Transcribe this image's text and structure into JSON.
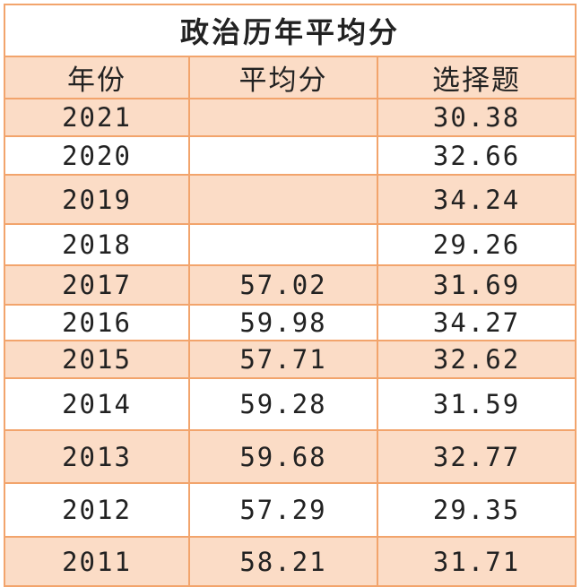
{
  "table": {
    "title": "政治历年平均分",
    "header": [
      "年份",
      "平均分",
      "选择题"
    ],
    "rows": [
      [
        "2021",
        null,
        "30.38"
      ],
      [
        "2020",
        null,
        "32.66"
      ],
      [
        "2019",
        null,
        "34.24"
      ],
      [
        "2018",
        null,
        "29.26"
      ],
      [
        "2017",
        "57.02",
        "31.69"
      ],
      [
        "2016",
        "59.98",
        "34.27"
      ],
      [
        "2015",
        "57.71",
        "32.62"
      ],
      [
        "2014",
        "59.28",
        "31.59"
      ],
      [
        "2013",
        "59.68",
        "32.77"
      ],
      [
        "2012",
        "57.29",
        "29.35"
      ],
      [
        "2011",
        "58.21",
        "31.71"
      ]
    ]
  }
}
